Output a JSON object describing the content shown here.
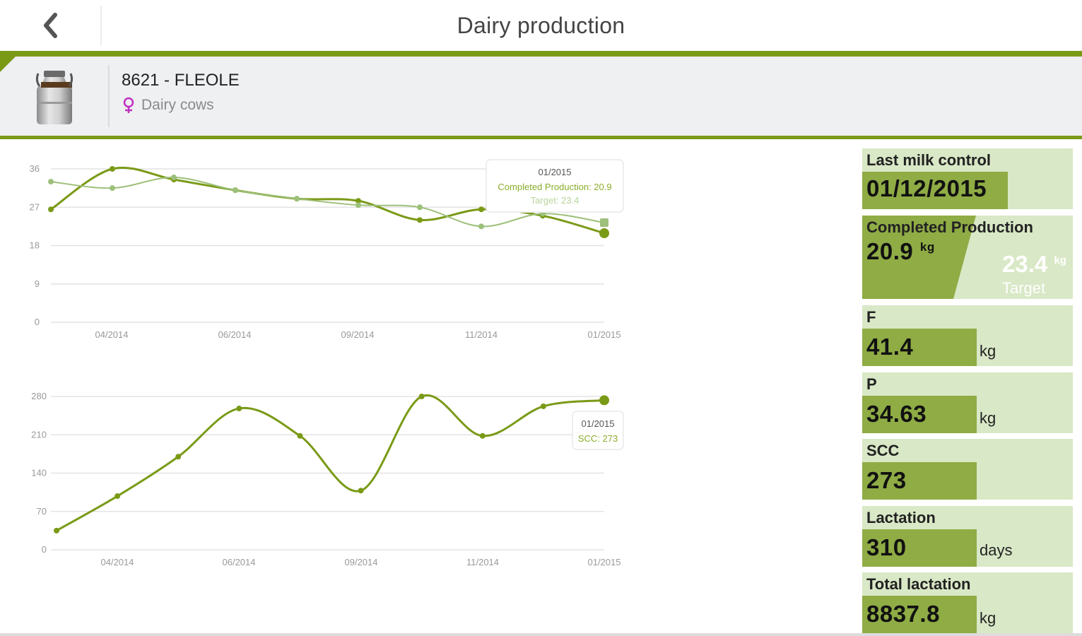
{
  "header": {
    "title": "Dairy production",
    "back_icon": "chevron-left-icon"
  },
  "animal": {
    "name": "8621 - FLEOLE",
    "group": "Dairy cows",
    "icon": "milk-can-icon",
    "group_icon": "female-icon"
  },
  "colors": {
    "accent": "#7a9a16",
    "series_main": "#7a9a16",
    "series_target": "#9dc07a",
    "tile_bg": "#d9e8c6",
    "tile_value_bg": "#8fac45"
  },
  "chart_data": [
    {
      "type": "line",
      "yticks": [
        "36",
        "27",
        "18",
        "9",
        "0"
      ],
      "ylim": [
        0,
        36
      ],
      "xticks": [
        "04/2014",
        "06/2014",
        "09/2014",
        "11/2014",
        "01/2015"
      ],
      "series": [
        {
          "values": [
            26.5,
            36,
            33.5,
            31,
            29,
            28.5,
            24,
            26.5,
            25,
            20.9
          ]
        },
        {
          "values": [
            33,
            31.5,
            34,
            31,
            29,
            27.5,
            27,
            22.5,
            25.5,
            23.4
          ]
        }
      ],
      "tooltip": {
        "date": "01/2015",
        "line1": "Completed Production: 20.9",
        "line2": "Target: 23.4"
      }
    },
    {
      "type": "line",
      "yticks": [
        "280",
        "210",
        "140",
        "70",
        "0"
      ],
      "ylim": [
        0,
        280
      ],
      "xticks": [
        "04/2014",
        "06/2014",
        "09/2014",
        "11/2014",
        "01/2015"
      ],
      "series": [
        {
          "values": [
            35,
            98,
            170,
            258,
            208,
            108,
            280,
            208,
            262,
            273
          ]
        }
      ],
      "tooltip": {
        "date": "01/2015",
        "line1": "SCC: 273"
      }
    }
  ],
  "tiles": {
    "last_control": {
      "label": "Last milk control",
      "value": "01/12/2015"
    },
    "production": {
      "label": "Completed Production",
      "value": "20.9",
      "unit": "kg",
      "target_value": "23.4",
      "target_unit": "kg",
      "target_label": "Target",
      "fill_fraction": 0.893
    },
    "f": {
      "label": "F",
      "value": "41.4",
      "unit": "kg"
    },
    "p": {
      "label": "P",
      "value": "34.63",
      "unit": "kg"
    },
    "scc": {
      "label": "SCC",
      "value": "273",
      "unit": ""
    },
    "lactation": {
      "label": "Lactation",
      "value": "310",
      "unit": "days"
    },
    "total_lactation": {
      "label": "Total lactation",
      "value": "8837.8",
      "unit": "kg"
    }
  }
}
